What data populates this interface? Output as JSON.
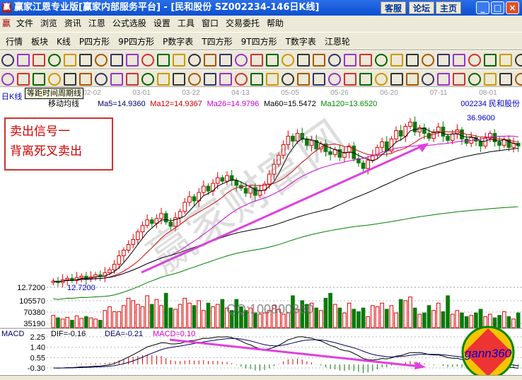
{
  "window": {
    "title": "赢家江恩专业版[赢家内部服务平台] - [民和股份    SZ002234-146日K线]",
    "buttons": [
      "客服",
      "论坛",
      "主页"
    ]
  },
  "menu": [
    "文件",
    "浏览",
    "资讯",
    "江恩",
    "公式选股",
    "设置",
    "工具",
    "窗口",
    "交易委托",
    "帮助"
  ],
  "toolbar1": [
    "行情",
    "板块",
    "K线",
    "P四方形",
    "9P四方形",
    "P数字表",
    "T四方形",
    "9T四方形",
    "T数字表",
    "江恩轮"
  ],
  "tooltip": "等距时间周期线",
  "period_label": "日K线",
  "date_ticks": [
    "02-02",
    "03-01",
    "03-22",
    "04-13",
    "05-05",
    "05-26",
    "06-20",
    "07-11",
    "08-01"
  ],
  "ma_line": {
    "title": "移动均线",
    "ma5": "Ma5=14.9360",
    "ma12": "Ma12=14.9367",
    "ma26": "Ma26=14.9796",
    "ma60": "Ma60=15.5472",
    "ma120": "Ma120=13.6520"
  },
  "stock": "002234 民和股份",
  "high_label": "36.9600",
  "low_label": "12.7200",
  "low_axis": "12.7200",
  "annotation": [
    "卖出信号一",
    "背离死叉卖出"
  ],
  "watermark": "QQ:100800360",
  "volume_ticks": [
    "105570",
    "70380",
    "35190"
  ],
  "macd": {
    "title": "MACD",
    "dif": "DIF=-0.16",
    "dea": "DEA=-0.21",
    "macd": "MACD=0.10",
    "ticks": [
      "2.25",
      "1.40",
      "0.55",
      "-0.30"
    ]
  },
  "logo": "gann360",
  "colors": {
    "up": "#e00000",
    "down": "#0a7a0a",
    "ma5": "#000000",
    "ma12": "#d00000",
    "ma26": "#d000d0",
    "ma60": "#000000",
    "ma120": "#008000",
    "arrow": "#e040e0"
  },
  "chart_data": {
    "type": "candlestick",
    "price_range": [
      12.72,
      36.96
    ],
    "closes": [
      13.6,
      13.4,
      13.8,
      14.0,
      13.7,
      14.1,
      14.3,
      13.9,
      14.2,
      14.5,
      14.3,
      14.8,
      15.2,
      16.0,
      17.2,
      18.0,
      18.8,
      19.5,
      20.6,
      21.5,
      22.3,
      21.8,
      22.5,
      23.2,
      22.0,
      21.4,
      22.6,
      23.5,
      24.8,
      25.6,
      25.0,
      26.2,
      27.1,
      26.4,
      27.5,
      28.3,
      27.8,
      28.6,
      27.9,
      27.2,
      26.8,
      26.1,
      26.9,
      25.8,
      26.5,
      27.4,
      28.8,
      30.2,
      31.5,
      33.0,
      34.2,
      33.5,
      34.6,
      33.8,
      32.9,
      33.6,
      32.4,
      33.1,
      32.0,
      31.6,
      32.3,
      31.2,
      31.9,
      32.8,
      31.0,
      30.4,
      29.6,
      30.8,
      31.5,
      32.6,
      33.4,
      32.1,
      33.8,
      35.0,
      34.2,
      35.6,
      36.2,
      34.8,
      35.4,
      34.6,
      33.9,
      34.8,
      35.5,
      34.2,
      33.6,
      34.5,
      35.1,
      33.8,
      33.2,
      34.0,
      33.5,
      32.8,
      33.9,
      34.6,
      33.4,
      32.9,
      33.7,
      32.6,
      33.2,
      32.8
    ],
    "volumes": [
      50,
      40,
      35,
      42,
      30,
      48,
      38,
      45,
      40,
      35,
      30,
      70,
      85,
      65,
      65,
      90,
      120,
      110,
      95,
      85,
      130,
      95,
      115,
      90,
      140,
      80,
      75,
      95,
      120,
      100,
      90,
      110,
      70,
      100,
      85,
      95,
      115,
      80,
      70,
      115,
      85,
      70,
      80,
      60,
      55,
      60,
      70,
      90,
      75,
      55,
      60,
      130,
      75,
      110,
      95,
      100,
      80,
      70,
      120,
      140,
      95,
      80,
      60,
      100,
      75,
      65,
      80,
      45,
      90,
      85,
      100,
      75,
      90,
      60,
      115,
      110,
      125,
      80,
      55,
      60,
      90,
      70,
      100,
      65,
      130,
      55,
      70,
      60,
      45,
      50,
      60,
      75,
      45,
      55,
      40,
      50,
      65,
      45,
      35,
      60
    ]
  }
}
